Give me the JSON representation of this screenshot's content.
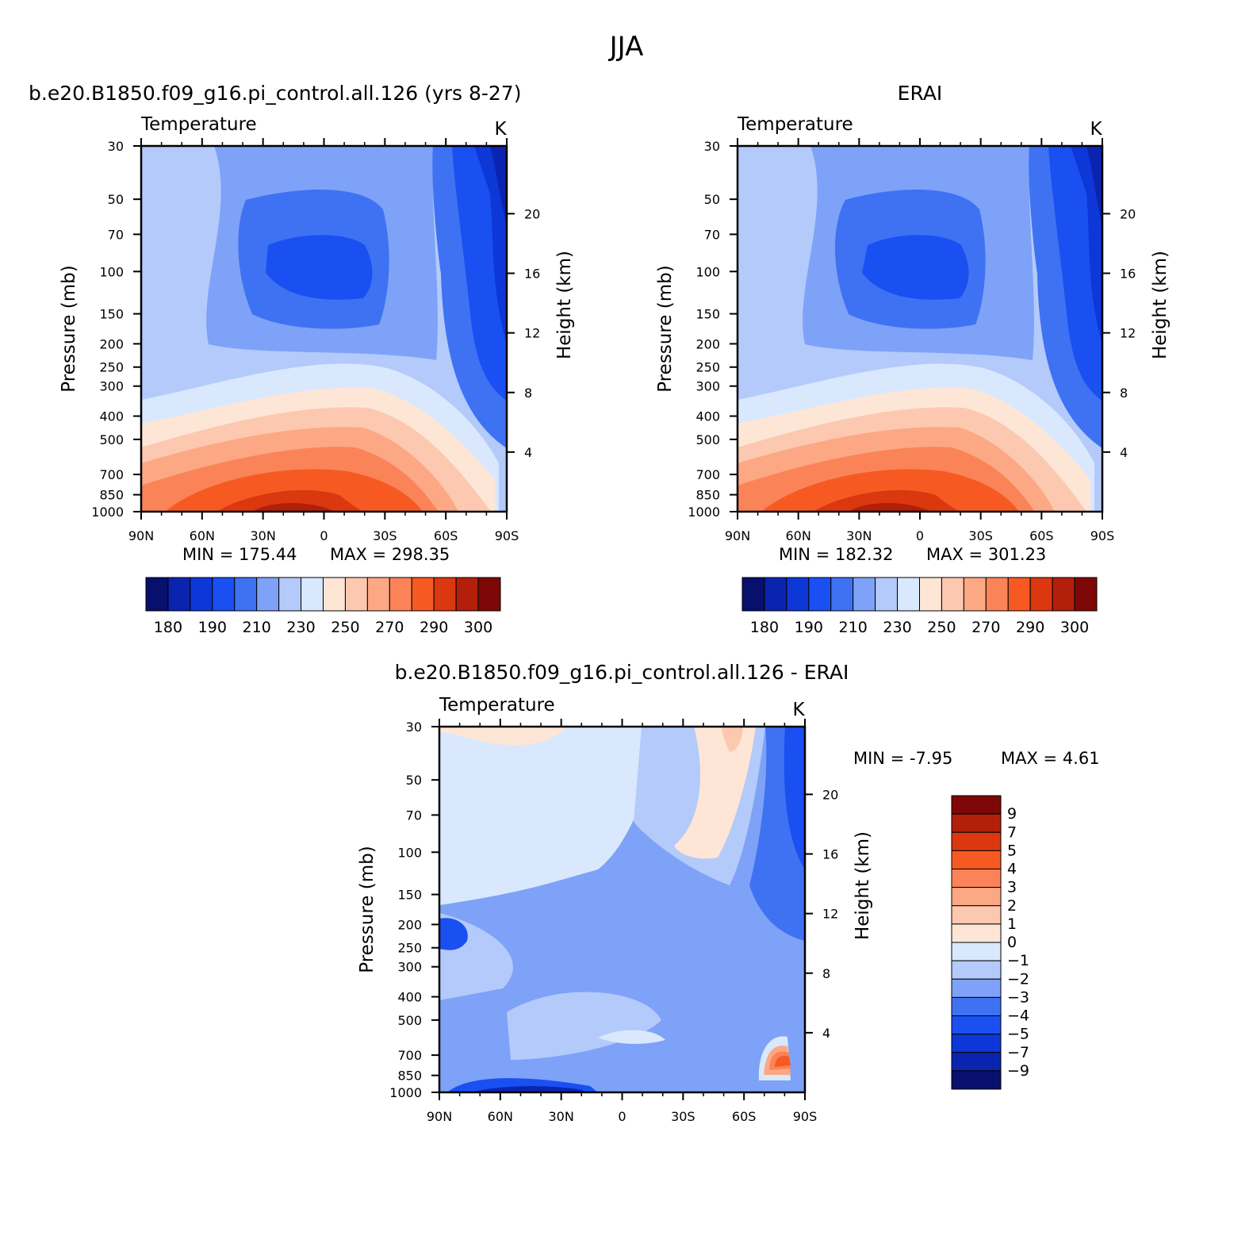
{
  "figure": {
    "title": "JJA"
  },
  "chart_data": [
    {
      "type": "heatmap",
      "caption": "b.e20.B1850.f09_g16.pi_control.all.126 (yrs 8-27)",
      "title": "Temperature",
      "units": "K",
      "ylabel": "Pressure (mb)",
      "y2label": "Height (km)",
      "x_ticks": [
        "90N",
        "60N",
        "30N",
        "0",
        "30S",
        "60S",
        "90S"
      ],
      "x": [
        90,
        60,
        30,
        0,
        -30,
        -60,
        -90
      ],
      "y_ticks": [
        "30",
        "50",
        "70",
        "100",
        "150",
        "200",
        "250",
        "300",
        "400",
        "500",
        "700",
        "850",
        "1000"
      ],
      "y": [
        30,
        50,
        70,
        100,
        150,
        200,
        250,
        300,
        400,
        500,
        700,
        850,
        1000
      ],
      "y2_ticks": [
        "4",
        "8",
        "12",
        "16",
        "20"
      ],
      "y2": [
        4,
        8,
        12,
        16,
        20
      ],
      "min_label": "MIN = 175.44",
      "max_label": "MAX = 298.35",
      "min": 175.44,
      "max": 298.35,
      "levels": [
        180,
        190,
        210,
        230,
        250,
        270,
        290,
        300
      ],
      "colorbar_labels": [
        "180",
        "190",
        "210",
        "230",
        "250",
        "270",
        "290",
        "300"
      ]
    },
    {
      "type": "heatmap",
      "caption": "ERAI",
      "title": "Temperature",
      "units": "K",
      "ylabel": "Pressure (mb)",
      "y2label": "Height (km)",
      "x_ticks": [
        "90N",
        "60N",
        "30N",
        "0",
        "30S",
        "60S",
        "90S"
      ],
      "x": [
        90,
        60,
        30,
        0,
        -30,
        -60,
        -90
      ],
      "y_ticks": [
        "30",
        "50",
        "70",
        "100",
        "150",
        "200",
        "250",
        "300",
        "400",
        "500",
        "700",
        "850",
        "1000"
      ],
      "y": [
        30,
        50,
        70,
        100,
        150,
        200,
        250,
        300,
        400,
        500,
        700,
        850,
        1000
      ],
      "y2_ticks": [
        "4",
        "8",
        "12",
        "16",
        "20"
      ],
      "y2": [
        4,
        8,
        12,
        16,
        20
      ],
      "min_label": "MIN = 182.32",
      "max_label": "MAX = 301.23",
      "min": 182.32,
      "max": 301.23,
      "levels": [
        180,
        190,
        210,
        230,
        250,
        270,
        290,
        300
      ],
      "colorbar_labels": [
        "180",
        "190",
        "210",
        "230",
        "250",
        "270",
        "290",
        "300"
      ]
    },
    {
      "type": "heatmap",
      "caption": "b.e20.B1850.f09_g16.pi_control.all.126 - ERAI",
      "title": "Temperature",
      "units": "K",
      "ylabel": "Pressure (mb)",
      "y2label": "Height (km)",
      "x_ticks": [
        "90N",
        "60N",
        "30N",
        "0",
        "30S",
        "60S",
        "90S"
      ],
      "x": [
        90,
        60,
        30,
        0,
        -30,
        -60,
        -90
      ],
      "y_ticks": [
        "30",
        "50",
        "70",
        "100",
        "150",
        "200",
        "250",
        "300",
        "400",
        "500",
        "700",
        "850",
        "1000"
      ],
      "y": [
        30,
        50,
        70,
        100,
        150,
        200,
        250,
        300,
        400,
        500,
        700,
        850,
        1000
      ],
      "y2_ticks": [
        "4",
        "8",
        "12",
        "16",
        "20"
      ],
      "y2": [
        4,
        8,
        12,
        16,
        20
      ],
      "min_label": "MIN = -7.95",
      "max_label": "MAX = 4.61",
      "min": -7.95,
      "max": 4.61,
      "levels": [
        9,
        7,
        5,
        4,
        3,
        2,
        1,
        0,
        -1,
        -2,
        -3,
        -4,
        -5,
        -7,
        -9
      ],
      "colorbar_labels": [
        "9",
        "7",
        "5",
        "4",
        "3",
        "2",
        "1",
        "0",
        "−1",
        "−2",
        "−3",
        "−4",
        "−5",
        "−7",
        "−9"
      ]
    }
  ],
  "colors": {
    "abs_palette": [
      "#08106e",
      "#0b24b0",
      "#0e37d8",
      "#1a4ff2",
      "#3f72f2",
      "#7ea2f7",
      "#b3cafb",
      "#d9e8fd",
      "#fde6d6",
      "#fdc8b0",
      "#fca885",
      "#fa8458",
      "#f65a22",
      "#db380f",
      "#b21f0b",
      "#7e0808"
    ],
    "diff_palette": [
      "#7e0808",
      "#b21f0b",
      "#db380f",
      "#f65a22",
      "#fa8458",
      "#fca885",
      "#fdc8b0",
      "#fde6d6",
      "#d9e8fd",
      "#b3cafb",
      "#7ea2f7",
      "#3f72f2",
      "#1a4ff2",
      "#0e37d8",
      "#0b24b0",
      "#08106e"
    ]
  }
}
